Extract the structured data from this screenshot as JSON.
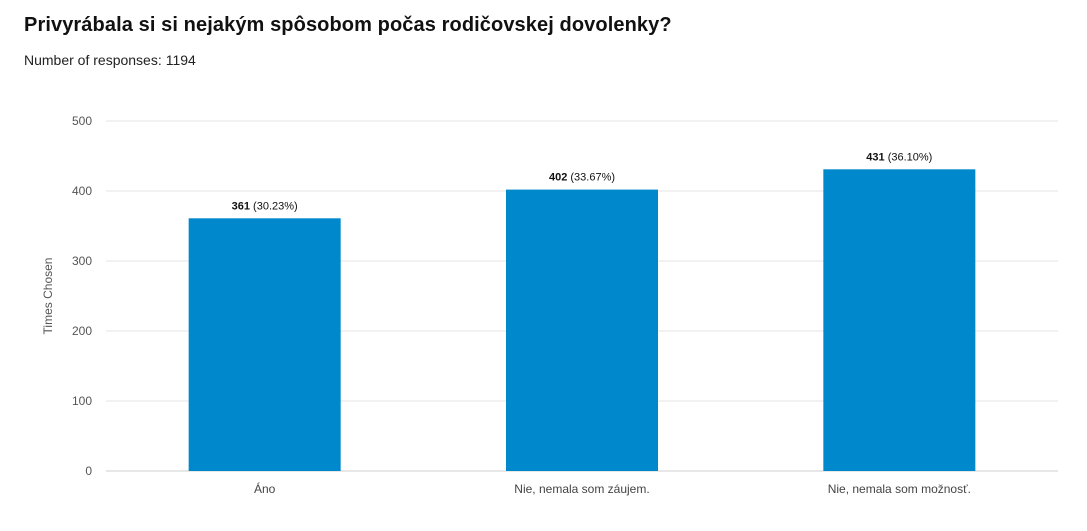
{
  "header": {
    "title": "Privyrábala si si nejakým spôsobom počas rodičovskej dovolenky?",
    "responses_label": "Number of responses:",
    "responses_count": "1194"
  },
  "colors": {
    "bar": "#0088cc",
    "grid": "#e6e6e6"
  },
  "chart_data": {
    "type": "bar",
    "categories": [
      "Áno",
      "Nie, nemala som záujem.",
      "Nie, nemala som možnosť."
    ],
    "values": [
      361,
      402,
      431
    ],
    "value_labels": [
      "361",
      "402",
      "431"
    ],
    "percent_labels": [
      "(30.23%)",
      "(33.67%)",
      "(36.10%)"
    ],
    "ylabel": "Times Chosen",
    "ylim": [
      0,
      500
    ],
    "yticks": [
      "0",
      "100",
      "200",
      "300",
      "400",
      "500"
    ],
    "grid": true
  }
}
